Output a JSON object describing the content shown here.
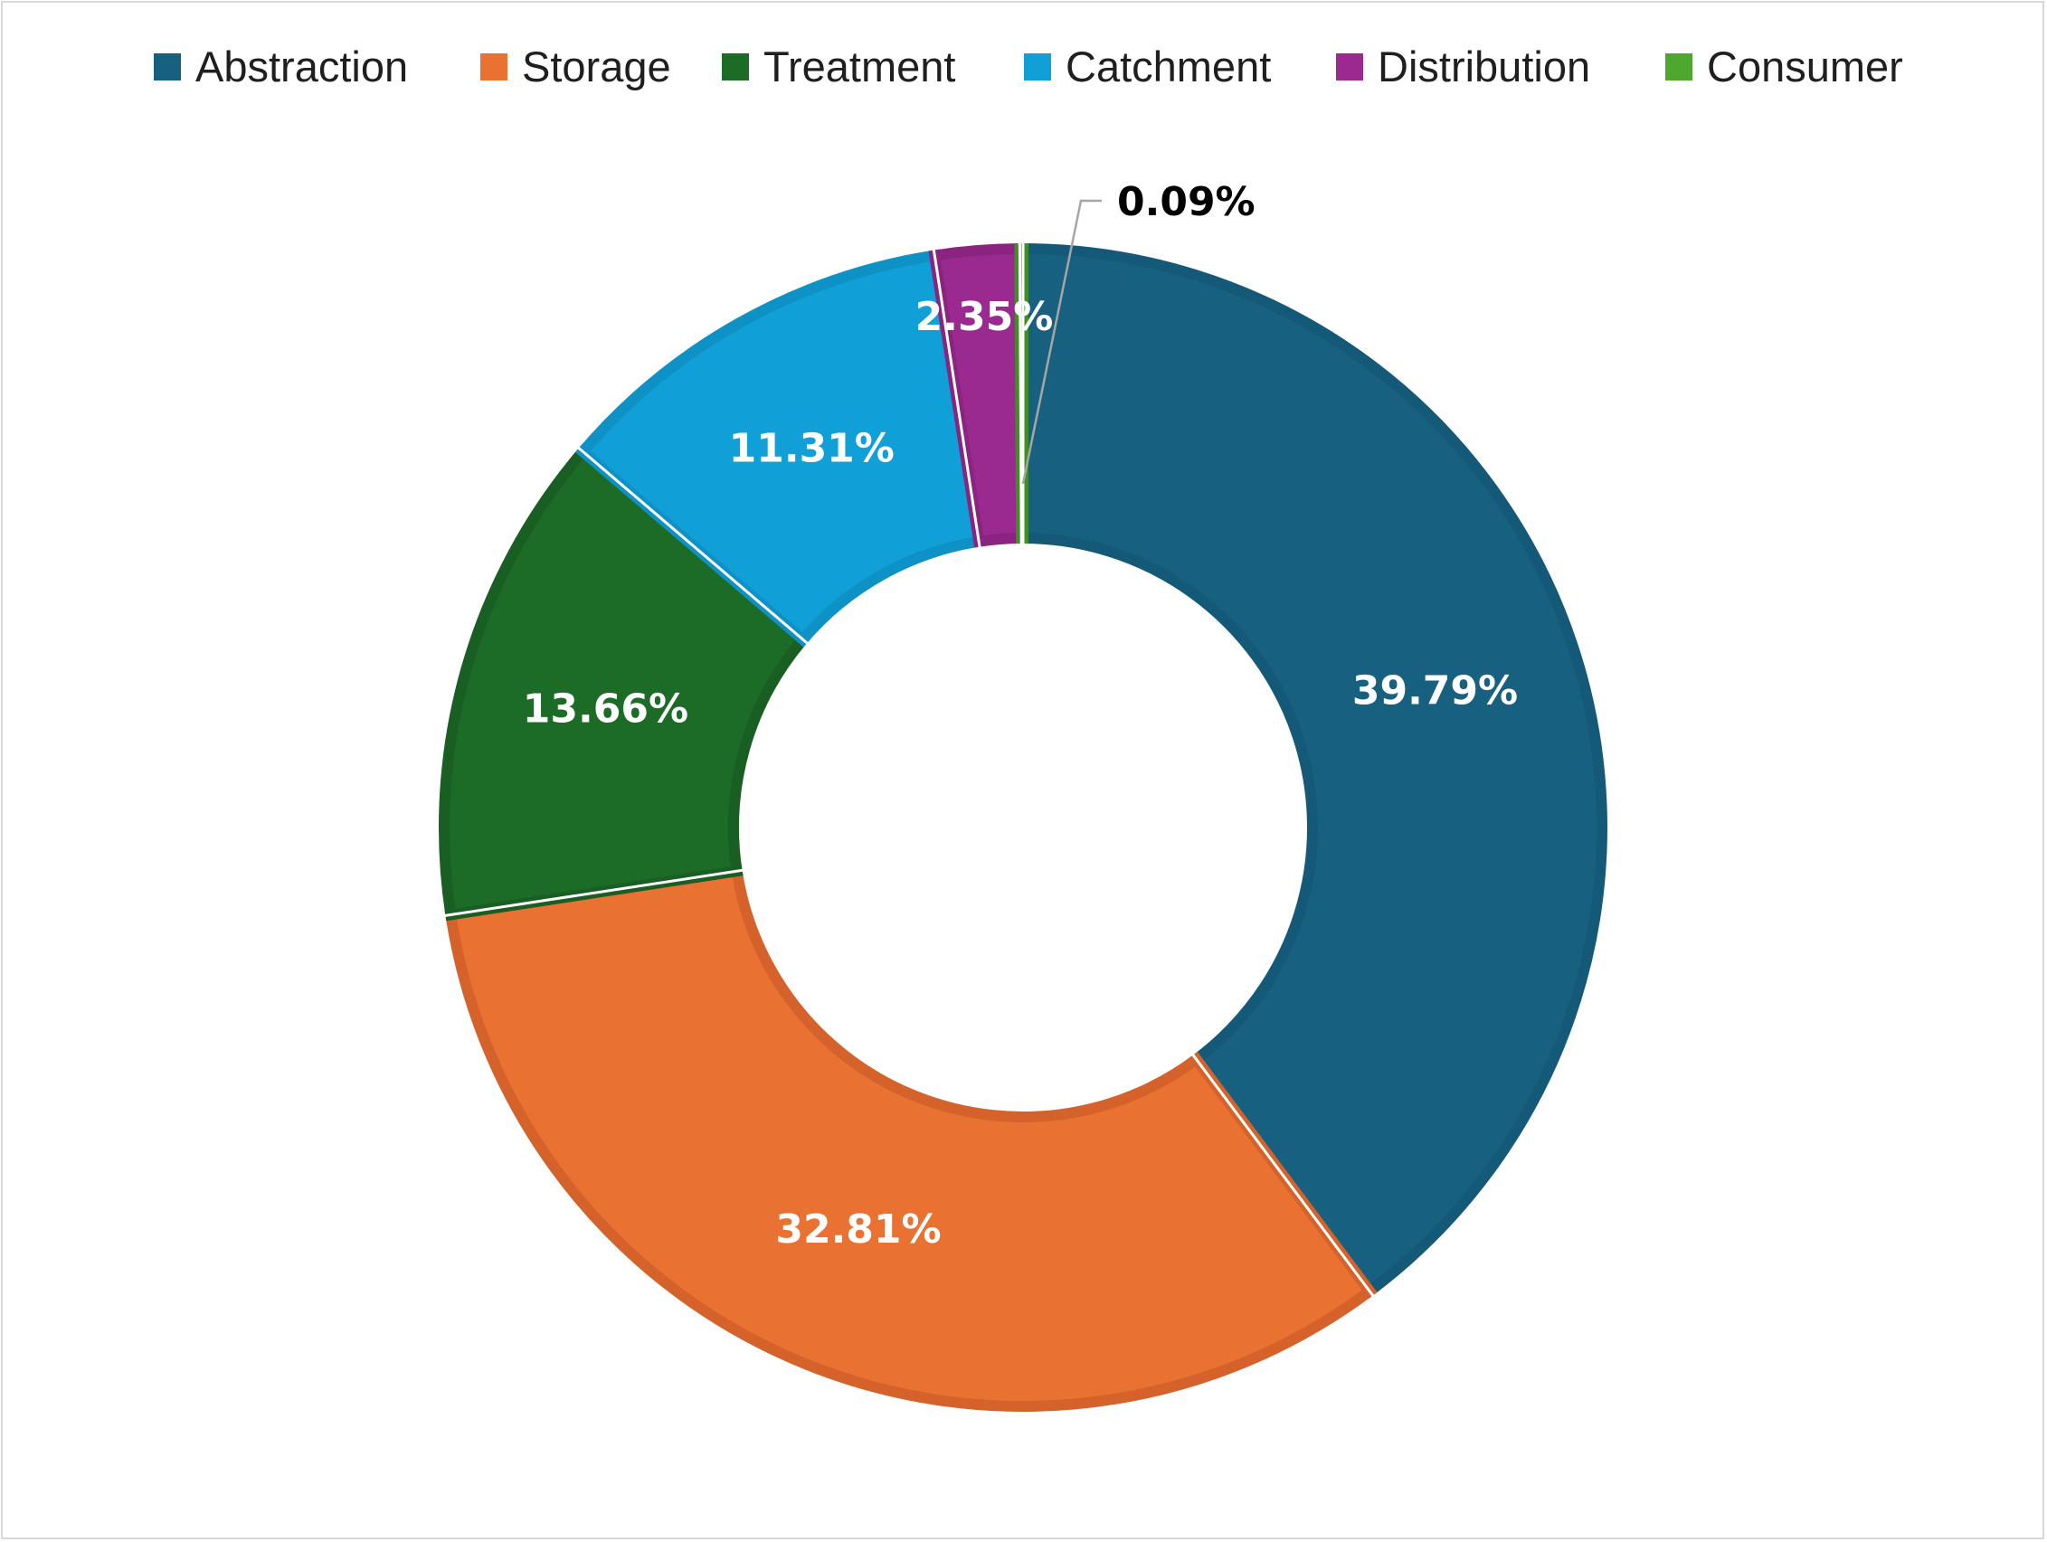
{
  "chart_data": {
    "type": "pie",
    "variant": "donut",
    "title": "",
    "legend_position": "top",
    "categories": [
      "Abstraction",
      "Storage",
      "Treatment",
      "Catchment",
      "Distribution",
      "Consumer"
    ],
    "values": [
      39.79,
      32.81,
      13.66,
      11.31,
      2.35,
      0.09
    ],
    "labels": [
      "39.79%",
      "32.81%",
      "13.66%",
      "11.31%",
      "2.35%",
      "0.09%"
    ],
    "colors": [
      "#17607f",
      "#e97132",
      "#1c6b26",
      "#109fd7",
      "#9a2a8f",
      "#4ea72e"
    ],
    "border_colors": [
      "#145a78",
      "#d4622a",
      "#195e22",
      "#0e92c6",
      "#8a2480",
      "#3f8f24"
    ],
    "unit": "%"
  }
}
